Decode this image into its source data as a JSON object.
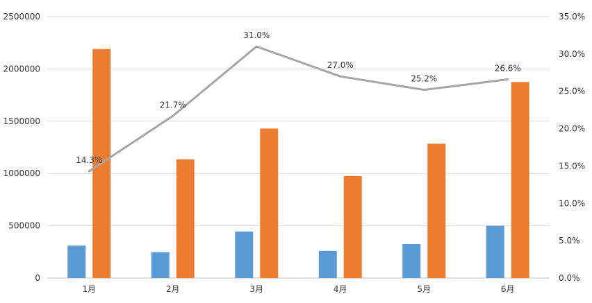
{
  "chart_data": {
    "type": "bar+line",
    "categories": [
      "1月",
      "2月",
      "3月",
      "4月",
      "5月",
      "6月"
    ],
    "series": [
      {
        "type": "bar",
        "axis": "left",
        "color": "#5b9bd5",
        "values": [
          310000,
          247000,
          445000,
          260000,
          325000,
          500000
        ]
      },
      {
        "type": "bar",
        "axis": "left",
        "color": "#ed7d31",
        "values": [
          2190000,
          1135000,
          1430000,
          975000,
          1285000,
          1875000
        ]
      },
      {
        "type": "line",
        "axis": "right",
        "color": "#a5a5a5",
        "values": [
          14.3,
          21.7,
          31.0,
          27.0,
          25.2,
          26.6
        ],
        "labels": [
          "14.3%",
          "21.7%",
          "31.0%",
          "27.0%",
          "25.2%",
          "26.6%"
        ]
      }
    ],
    "y_left": {
      "min": 0,
      "max": 2500000,
      "ticks": [
        "0",
        "500000",
        "1000000",
        "1500000",
        "2000000",
        "2500000"
      ]
    },
    "y_right": {
      "min": 0,
      "max": 35,
      "ticks": [
        "0.0%",
        "5.0%",
        "10.0%",
        "15.0%",
        "20.0%",
        "25.0%",
        "30.0%",
        "35.0%"
      ]
    },
    "grid": true,
    "legend": "bottom"
  }
}
